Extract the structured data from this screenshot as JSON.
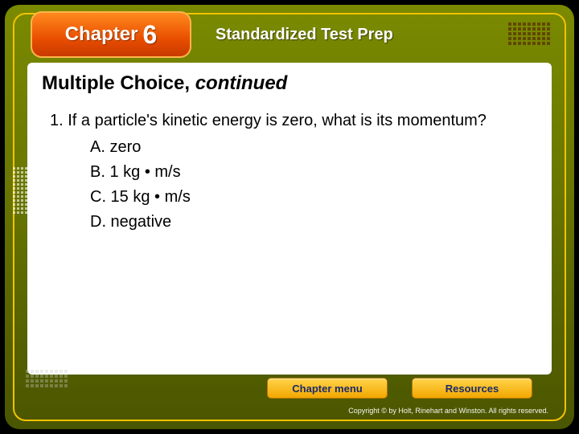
{
  "header": {
    "chapter_label": "Chapter",
    "chapter_number": "6",
    "title": "Standardized Test Prep"
  },
  "section": {
    "heading_main": "Multiple Choice,",
    "heading_suffix": "continued"
  },
  "question": {
    "number": "1.",
    "stem": "If a particle's kinetic energy is zero, what is its momentum?",
    "options": {
      "a": "A. zero",
      "b": "B. 1 kg • m/s",
      "c": "C. 15 kg • m/s",
      "d": "D. negative"
    }
  },
  "footer": {
    "chapter_menu": "Chapter menu",
    "resources": "Resources",
    "copyright": "Copyright © by Holt, Rinehart and Winston. All rights reserved."
  },
  "colors": {
    "accent_orange": "#e94e00",
    "accent_gold": "#f2a600",
    "bg_olive": "#6a7800",
    "frame_border": "#f2c200",
    "text_white": "#ffffff",
    "text_black": "#000000",
    "btn_text": "#1a2a6a"
  }
}
